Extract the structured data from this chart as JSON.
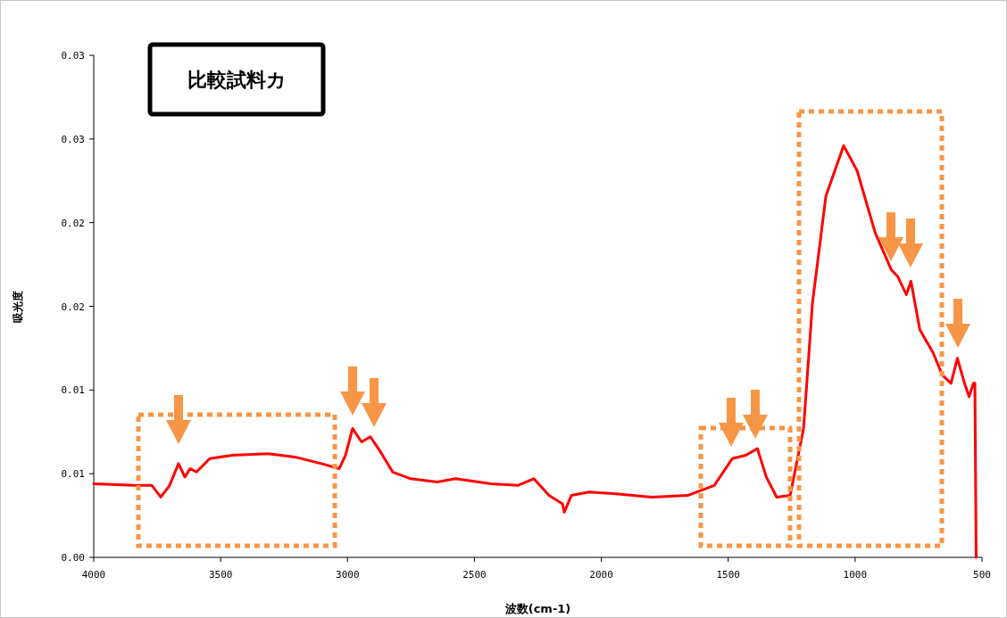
{
  "chart_data": {
    "type": "line",
    "title": "比較試料カ",
    "xlabel": "波数(cm-1)",
    "ylabel": "吸光度",
    "xlim": [
      4000,
      500
    ],
    "ylim": [
      0,
      0.03
    ],
    "xticks": [
      4000,
      3500,
      3000,
      2500,
      2000,
      1500,
      1000,
      500
    ],
    "yticks": [
      {
        "value": 0,
        "label": "0.00"
      },
      {
        "value": 0.005,
        "label": "0.01"
      },
      {
        "value": 0.01,
        "label": "0.01"
      },
      {
        "value": 0.015,
        "label": "0.02"
      },
      {
        "value": 0.02,
        "label": "0.02"
      },
      {
        "value": 0.025,
        "label": "0.03"
      },
      {
        "value": 0.03,
        "label": "0.03"
      }
    ],
    "grid": false,
    "marker": "none",
    "line_style": "solid",
    "series": [
      {
        "color": "#ff0000",
        "x": [
          4000,
          3842,
          3771,
          3736,
          3701,
          3666,
          3641,
          3620,
          3595,
          3543,
          3455,
          3314,
          3208,
          3103,
          3033,
          3008,
          2980,
          2945,
          2910,
          2874,
          2822,
          2751,
          2646,
          2575,
          2435,
          2329,
          2266,
          2206,
          2153,
          2146,
          2118,
          2048,
          1942,
          1801,
          1660,
          1555,
          1484,
          1431,
          1385,
          1350,
          1309,
          1256,
          1203,
          1168,
          1115,
          1045,
          992,
          921,
          858,
          833,
          798,
          780,
          745,
          692,
          657,
          622,
          597,
          569,
          551,
          534,
          528,
          523
        ],
        "values": [
          0.0044,
          0.0043,
          0.0043,
          0.0036,
          0.0043,
          0.0056,
          0.0048,
          0.0053,
          0.0051,
          0.0059,
          0.0061,
          0.0062,
          0.006,
          0.0056,
          0.0053,
          0.0061,
          0.0077,
          0.0069,
          0.0072,
          0.0064,
          0.0051,
          0.0047,
          0.0045,
          0.0047,
          0.0044,
          0.0043,
          0.0047,
          0.0037,
          0.0032,
          0.0027,
          0.0037,
          0.0039,
          0.0038,
          0.0036,
          0.0037,
          0.0043,
          0.0059,
          0.0061,
          0.0065,
          0.0048,
          0.0036,
          0.0037,
          0.0077,
          0.0152,
          0.0216,
          0.0246,
          0.0231,
          0.0194,
          0.0172,
          0.0168,
          0.0157,
          0.0165,
          0.0136,
          0.0122,
          0.0109,
          0.0104,
          0.0119,
          0.0104,
          0.0096,
          0.0104,
          0.0104,
          0
        ]
      }
    ]
  }
}
